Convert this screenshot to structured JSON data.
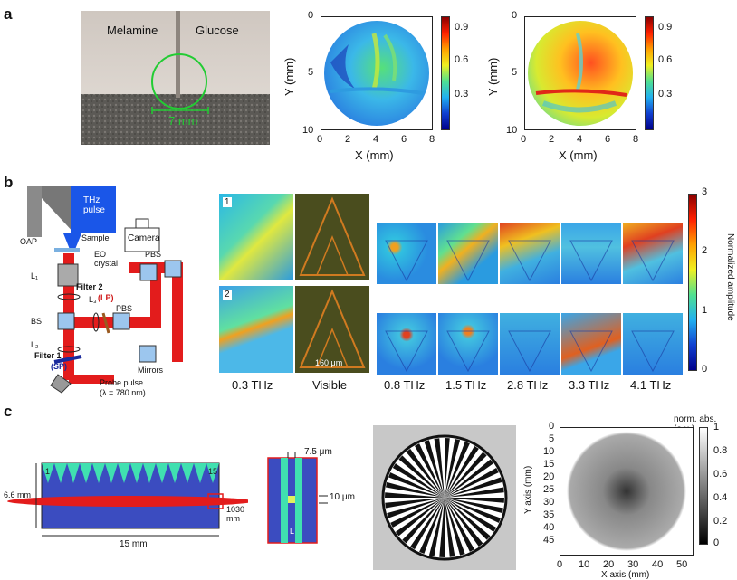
{
  "panels": {
    "a": "a",
    "b": "b",
    "c": "c"
  },
  "panel_a": {
    "photo": {
      "left_label": "Melamine",
      "right_label": "Glucose",
      "scale_label": "7 mm"
    },
    "maps": [
      {
        "ylabel": "Y (mm)",
        "xlabel": "X (mm)",
        "yticks": [
          "0",
          "5",
          "10"
        ],
        "xticks": [
          "0",
          "2",
          "4",
          "6",
          "8"
        ],
        "cbar_ticks": [
          "0.9",
          "0.6",
          "0.3"
        ]
      },
      {
        "ylabel": "Y (mm)",
        "xlabel": "X (mm)",
        "yticks": [
          "0",
          "5",
          "10"
        ],
        "xticks": [
          "0",
          "2",
          "4",
          "6",
          "8"
        ],
        "cbar_ticks": [
          "0.9",
          "0.6",
          "0.3"
        ]
      }
    ]
  },
  "panel_b": {
    "setup": {
      "thz_pulse": "THz\npulse",
      "oap": "OAP",
      "sample": "Sample",
      "eo_crystal": "EO\ncrystal",
      "camera": "Camera",
      "l1": "L₁",
      "l2": "L₂",
      "l3": "L₃",
      "filter2": "Filter 2",
      "filter2_sub": "(LP)",
      "filter1": "Filter 1",
      "filter1_sub": "(SP)",
      "pbs1": "PBS",
      "pbs2": "PBS",
      "bs": "BS",
      "mirrors": "Mirrors",
      "probe": "Probe pulse",
      "probe_sub": "(λ = 780 nm)"
    },
    "insets": {
      "n1": "1",
      "n2": "2",
      "scale": "160 μm"
    },
    "column_labels": [
      "0.3 THz",
      "Visible",
      "0.8 THz",
      "1.5 THz",
      "2.8 THz",
      "3.3 THz",
      "4.1 THz"
    ],
    "colorbar": {
      "label": "Normalized amplitude",
      "ticks": [
        "3",
        "2",
        "1",
        "0"
      ]
    }
  },
  "panel_c": {
    "schematic": {
      "dim_height": "6.6 mm",
      "dim_width": "15 mm",
      "wavelength": "1030 mm",
      "first_index": "1",
      "last_index": "15"
    },
    "zoom": {
      "pitch": "7.5 μm",
      "gap": "10 μm",
      "L": "L"
    },
    "plot": {
      "cbar_title": "norm. abs. (a.u.)",
      "ylabel": "Y axis (mm)",
      "xlabel": "X axis (mm)",
      "yticks": [
        "0",
        "5",
        "10",
        "15",
        "20",
        "25",
        "30",
        "35",
        "40",
        "45"
      ],
      "xticks": [
        "0",
        "10",
        "20",
        "30",
        "40",
        "50"
      ],
      "cbar_ticks": [
        "1",
        "0.8",
        "0.6",
        "0.4",
        "0.2",
        "0"
      ]
    }
  }
}
